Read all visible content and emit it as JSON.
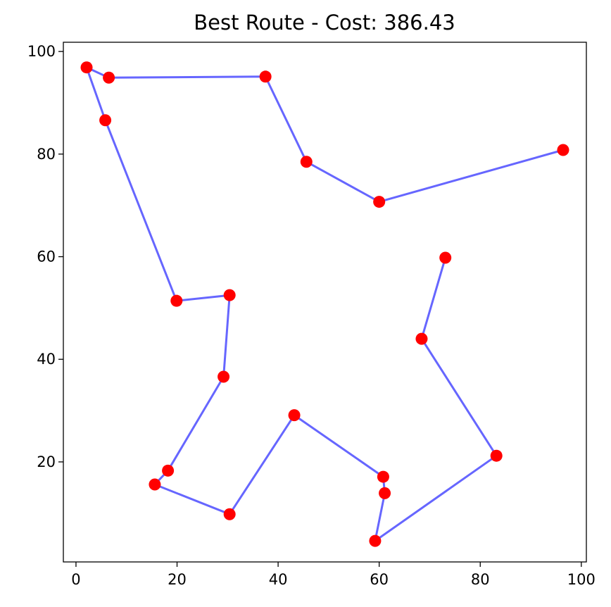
{
  "chart_data": {
    "type": "line",
    "title": "Best Route - Cost: 386.43",
    "xlabel": "",
    "ylabel": "",
    "xlim": [
      -2.5,
      101
    ],
    "ylim": [
      0.5,
      101.8
    ],
    "xticks": [
      0,
      20,
      40,
      60,
      80,
      100
    ],
    "yticks": [
      20,
      40,
      60,
      80,
      100
    ],
    "grid": false,
    "route_color": "#0000ff",
    "point_color": "#ff0000",
    "route": [
      {
        "x": 96.4,
        "y": 80.8
      },
      {
        "x": 60.0,
        "y": 70.7
      },
      {
        "x": 45.6,
        "y": 78.5
      },
      {
        "x": 37.5,
        "y": 95.1
      },
      {
        "x": 6.5,
        "y": 94.9
      },
      {
        "x": 2.1,
        "y": 96.9
      },
      {
        "x": 5.8,
        "y": 86.6
      },
      {
        "x": 19.9,
        "y": 51.4
      },
      {
        "x": 30.4,
        "y": 52.5
      },
      {
        "x": 29.2,
        "y": 36.6
      },
      {
        "x": 18.2,
        "y": 18.3
      },
      {
        "x": 15.6,
        "y": 15.6
      },
      {
        "x": 30.4,
        "y": 9.8
      },
      {
        "x": 43.2,
        "y": 29.1
      },
      {
        "x": 60.8,
        "y": 17.1
      },
      {
        "x": 61.1,
        "y": 13.9
      },
      {
        "x": 59.2,
        "y": 4.6
      },
      {
        "x": 83.2,
        "y": 21.2
      },
      {
        "x": 68.4,
        "y": 44.0
      },
      {
        "x": 73.1,
        "y": 59.8
      }
    ]
  }
}
